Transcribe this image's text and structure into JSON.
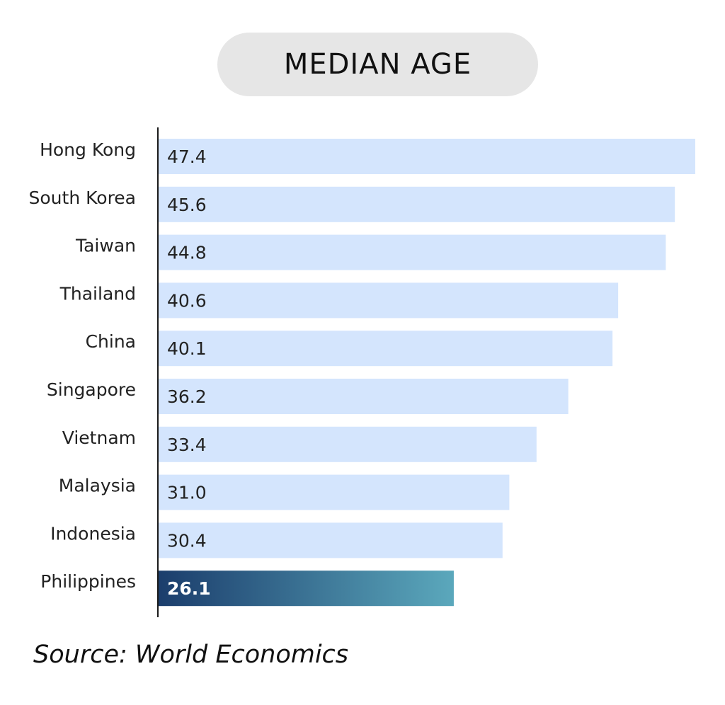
{
  "title": "MEDIAN AGE",
  "source": "Source: World Economics",
  "colors": {
    "bar": "#d4e5fd",
    "highlight_start": "#1b3d6c",
    "highlight_end": "#5ba8bc",
    "axis": "#1a1a1a",
    "text": "#222222",
    "highlight_text": "#ffffff"
  },
  "chart_data": {
    "type": "bar",
    "orientation": "horizontal",
    "categories": [
      "Hong Kong",
      "South Korea",
      "Taiwan",
      "Thailand",
      "China",
      "Singapore",
      "Vietnam",
      "Malaysia",
      "Indonesia",
      "Philippines"
    ],
    "values": [
      47.4,
      45.6,
      44.8,
      40.6,
      40.1,
      36.2,
      33.4,
      31.0,
      30.4,
      26.1
    ],
    "value_labels": [
      "47.4",
      "45.6",
      "44.8",
      "40.6",
      "40.1",
      "36.2",
      "33.4",
      "31.0",
      "30.4",
      "26.1"
    ],
    "highlight": "Philippines",
    "title": "MEDIAN AGE",
    "xlabel": "",
    "ylabel": "",
    "grid": false,
    "legend": "none"
  }
}
